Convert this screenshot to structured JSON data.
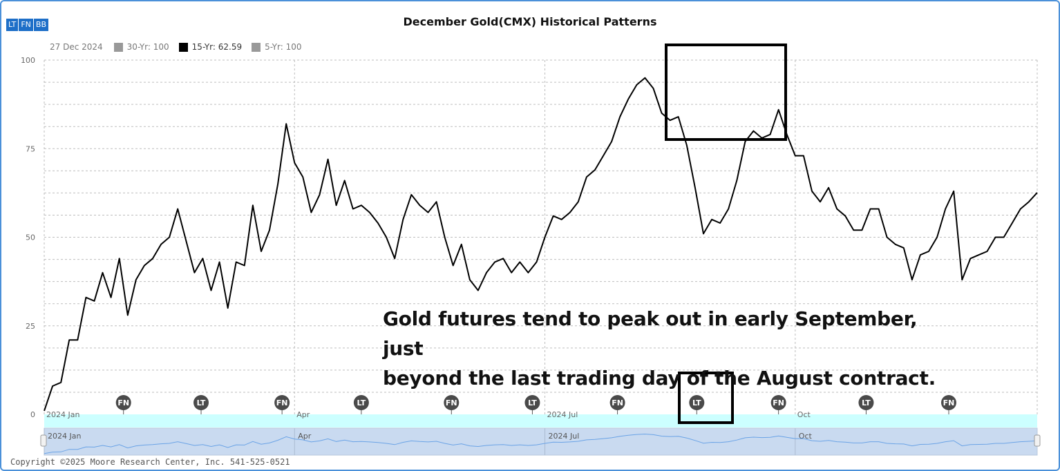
{
  "toolbar": {
    "lt": "LT",
    "fn": "FN",
    "bb": "BB"
  },
  "chart_data": {
    "type": "line",
    "title": "December Gold(CMX) Historical Patterns",
    "legend": {
      "date": "27 Dec 2024",
      "items": [
        {
          "label": "30-Yr: 100",
          "color": "#999999"
        },
        {
          "label": "15-Yr: 62.59",
          "color": "#000000"
        },
        {
          "label": "5-Yr: 100",
          "color": "#999999"
        }
      ]
    },
    "y_ticks": [
      "100",
      "75",
      "50",
      "25",
      "0"
    ],
    "ylim": [
      0,
      100
    ],
    "x_month_labels": [
      "2024 Jan",
      "Apr",
      "2024 Jul",
      "Oct"
    ],
    "x_month_positions": [
      0,
      3,
      6,
      9
    ],
    "xlim": [
      0,
      11.9
    ],
    "series": [
      {
        "color": "#000000",
        "x": [
          0,
          0.1,
          0.2,
          0.3,
          0.4,
          0.5,
          0.6,
          0.7,
          0.8,
          0.9,
          1.0,
          1.1,
          1.2,
          1.3,
          1.4,
          1.5,
          1.6,
          1.7,
          1.8,
          1.9,
          2.0,
          2.1,
          2.2,
          2.3,
          2.4,
          2.5,
          2.6,
          2.7,
          2.8,
          2.9,
          3.0,
          3.1,
          3.2,
          3.3,
          3.4,
          3.5,
          3.6,
          3.7,
          3.8,
          3.9,
          4.0,
          4.1,
          4.2,
          4.3,
          4.4,
          4.5,
          4.6,
          4.7,
          4.8,
          4.9,
          5.0,
          5.1,
          5.2,
          5.3,
          5.4,
          5.5,
          5.6,
          5.7,
          5.8,
          5.9,
          6.0,
          6.1,
          6.2,
          6.3,
          6.4,
          6.5,
          6.6,
          6.7,
          6.8,
          6.9,
          7.0,
          7.1,
          7.2,
          7.3,
          7.4,
          7.5,
          7.6,
          7.7,
          7.8,
          7.9,
          8.0,
          8.1,
          8.2,
          8.3,
          8.4,
          8.5,
          8.6,
          8.7,
          8.8,
          8.9,
          9.0,
          9.1,
          9.2,
          9.3,
          9.4,
          9.5,
          9.6,
          9.7,
          9.8,
          9.9,
          10.0,
          10.1,
          10.2,
          10.3,
          10.4,
          10.5,
          10.6,
          10.7,
          10.8,
          10.9,
          11.0,
          11.1,
          11.2,
          11.3,
          11.4,
          11.5,
          11.6,
          11.7,
          11.8,
          11.9
        ],
        "values": [
          1,
          8,
          9,
          21,
          21,
          33,
          32,
          40,
          33,
          44,
          28,
          38,
          42,
          44,
          48,
          50,
          58,
          49,
          40,
          44,
          35,
          43,
          30,
          43,
          42,
          59,
          46,
          52,
          65,
          82,
          71,
          67,
          57,
          62,
          72,
          59,
          66,
          58,
          59,
          57,
          54,
          50,
          44,
          55,
          62,
          59,
          57,
          60,
          50,
          42,
          48,
          38,
          35,
          40,
          43,
          44,
          40,
          43,
          40,
          43,
          50,
          56,
          55,
          57,
          60,
          67,
          69,
          73,
          77,
          84,
          89,
          93,
          95,
          92,
          85,
          83,
          84,
          76,
          64,
          51,
          55,
          54,
          58,
          66,
          77,
          80,
          78,
          79,
          86,
          79,
          73,
          73,
          63,
          60,
          64,
          58,
          56,
          52,
          52,
          58,
          58,
          50,
          48,
          47,
          38,
          45,
          46,
          50,
          58,
          63,
          38,
          44,
          45,
          46,
          50,
          50,
          54,
          58,
          60,
          62.59
        ]
      }
    ],
    "markers": [
      {
        "label": "FN",
        "x": 0.95
      },
      {
        "label": "LT",
        "x": 1.88
      },
      {
        "label": "FN",
        "x": 2.85
      },
      {
        "label": "LT",
        "x": 3.8
      },
      {
        "label": "FN",
        "x": 4.88
      },
      {
        "label": "LT",
        "x": 5.85
      },
      {
        "label": "FN",
        "x": 6.87
      },
      {
        "label": "LT",
        "x": 7.82
      },
      {
        "label": "FN",
        "x": 8.8
      },
      {
        "label": "LT",
        "x": 9.85
      },
      {
        "label": "FN",
        "x": 10.84
      }
    ],
    "navigator_labels": [
      "2024 Jan",
      "Apr",
      "2024 Jul",
      "Oct"
    ]
  },
  "annotation": {
    "line1": "Gold futures tend to peak out in early September, just",
    "line2": "beyond the last trading day of the August contract."
  },
  "copyright": "Copyright ©2025 Moore Research Center, Inc. 541-525-0521"
}
